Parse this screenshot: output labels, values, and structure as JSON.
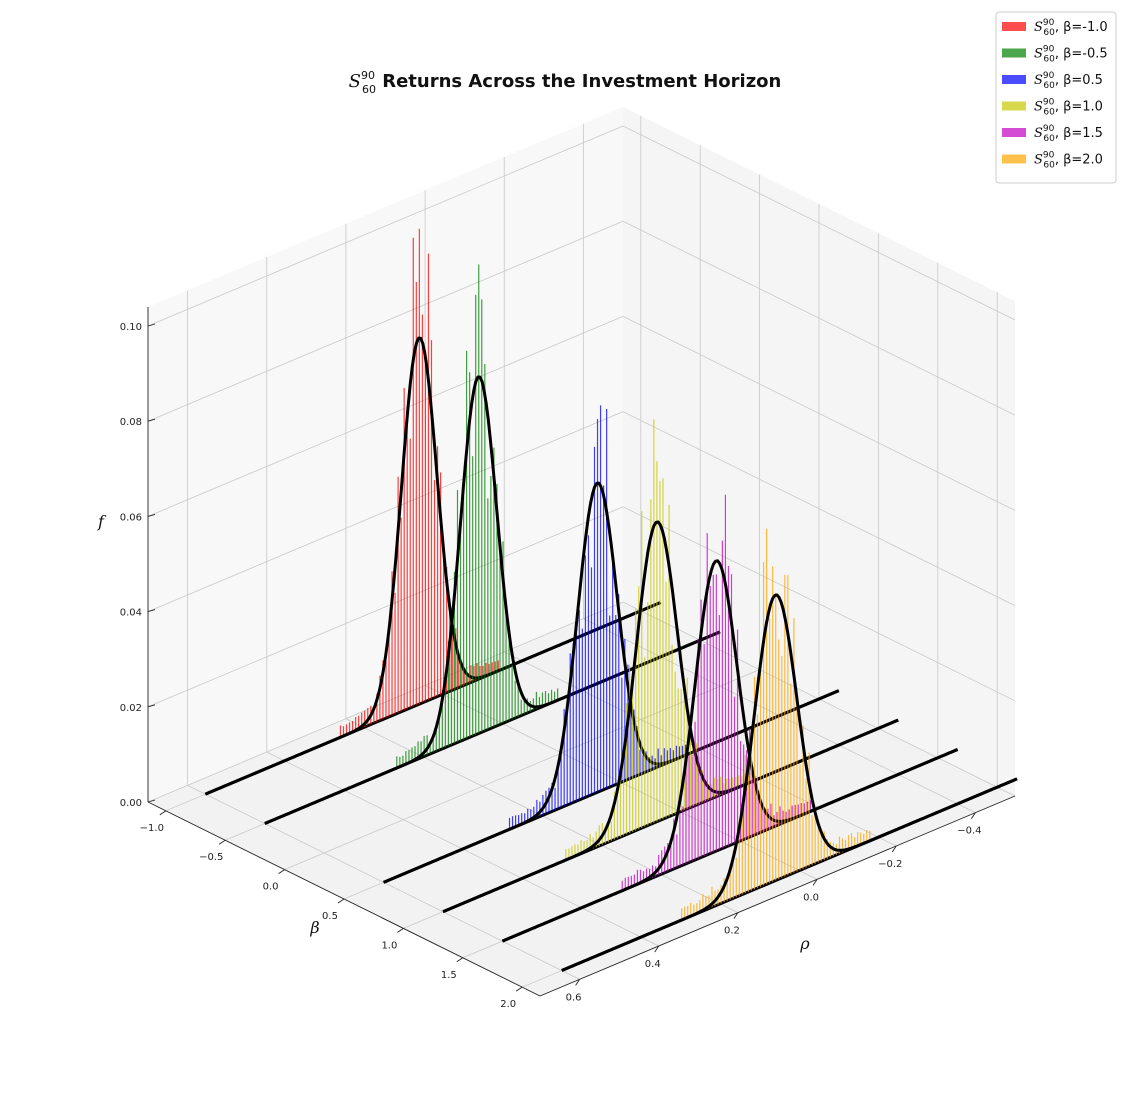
{
  "chart_data": {
    "type": "histogram-3d",
    "title": {
      "symbol": "S",
      "superscript": "90",
      "subscript": "60",
      "text": " Returns Across the Investment Horizon"
    },
    "axes": {
      "x": {
        "label": "ρ",
        "ticks": [
          "0.6",
          "0.4",
          "0.2",
          "0.0",
          "−0.2",
          "−0.4"
        ],
        "tick_values": [
          0.6,
          0.4,
          0.2,
          0.0,
          -0.2,
          -0.4
        ],
        "range": [
          -0.5,
          0.7
        ]
      },
      "y": {
        "label": "β",
        "ticks": [
          "−1.0",
          "−0.5",
          "0.0",
          "0.5",
          "1.0",
          "1.5",
          "2.0"
        ],
        "tick_values": [
          -1.0,
          -0.5,
          0.0,
          0.5,
          1.0,
          1.5,
          2.0
        ],
        "range": [
          -1.15,
          2.15
        ]
      },
      "z": {
        "label": "f",
        "ticks": [
          "0.00",
          "0.02",
          "0.04",
          "0.06",
          "0.08",
          "0.10"
        ],
        "tick_values": [
          0.0,
          0.02,
          0.04,
          0.06,
          0.08,
          0.1
        ],
        "range": [
          0.0,
          0.104
        ]
      }
    },
    "grid": true,
    "legend_position": "top-right",
    "series": [
      {
        "name": "β=-1.0",
        "beta": -1.0,
        "color": "#ff0000",
        "peak_hist": 0.098,
        "peak_fit": 0.077,
        "mean": 0.06,
        "sd": 0.045
      },
      {
        "name": "β=-0.5",
        "beta": -0.5,
        "color": "#008000",
        "peak_hist": 0.095,
        "peak_fit": 0.075,
        "mean": 0.06,
        "sd": 0.046
      },
      {
        "name": "β=0.5",
        "beta": 0.5,
        "color": "#0000ff",
        "peak_hist": 0.081,
        "peak_fit": 0.065,
        "mean": 0.06,
        "sd": 0.05
      },
      {
        "name": "β=1.0",
        "beta": 1.0,
        "color": "#c8c800",
        "peak_hist": 0.075,
        "peak_fit": 0.063,
        "mean": 0.06,
        "sd": 0.052
      },
      {
        "name": "β=1.5",
        "beta": 1.5,
        "color": "#c000c0",
        "peak_hist": 0.073,
        "peak_fit": 0.061,
        "mean": 0.06,
        "sd": 0.053
      },
      {
        "name": "β=2.0",
        "beta": 2.0,
        "color": "#ffa500",
        "peak_hist": 0.071,
        "peak_fit": 0.06,
        "mean": 0.06,
        "sd": 0.054
      }
    ]
  },
  "legend": {
    "symbol": "S",
    "superscript": "90",
    "subscript": "60"
  }
}
